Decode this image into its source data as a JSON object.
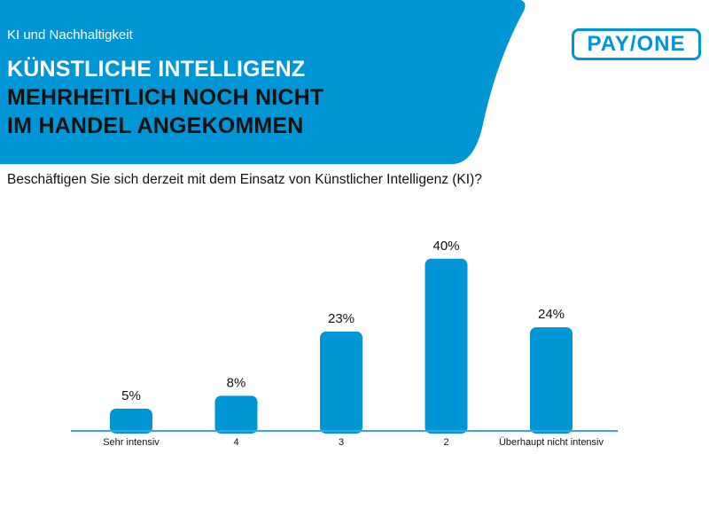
{
  "header": {
    "kicker": "KI und Nachhaltigkeit",
    "title_lines": [
      "KÜNSTLICHE INTELLIGENZ",
      "MEHRHEITLICH NOCH NICHT",
      "IM HANDEL ANGEKOMMEN"
    ],
    "logo": "PAY/ONE"
  },
  "colors": {
    "accent": "#0096d6"
  },
  "chart_data": {
    "type": "bar",
    "title": "Beschäftigen Sie sich derzeit mit dem Einsatz von Künstlicher Intelligenz (KI)?",
    "categories": [
      "Sehr intensiv",
      "4",
      "3",
      "2",
      "Überhaupt nicht intensiv"
    ],
    "values": [
      5,
      8,
      23,
      40,
      24
    ],
    "value_labels": [
      "5%",
      "8%",
      "23%",
      "40%",
      "24%"
    ],
    "unit": "%",
    "grid": false
  }
}
